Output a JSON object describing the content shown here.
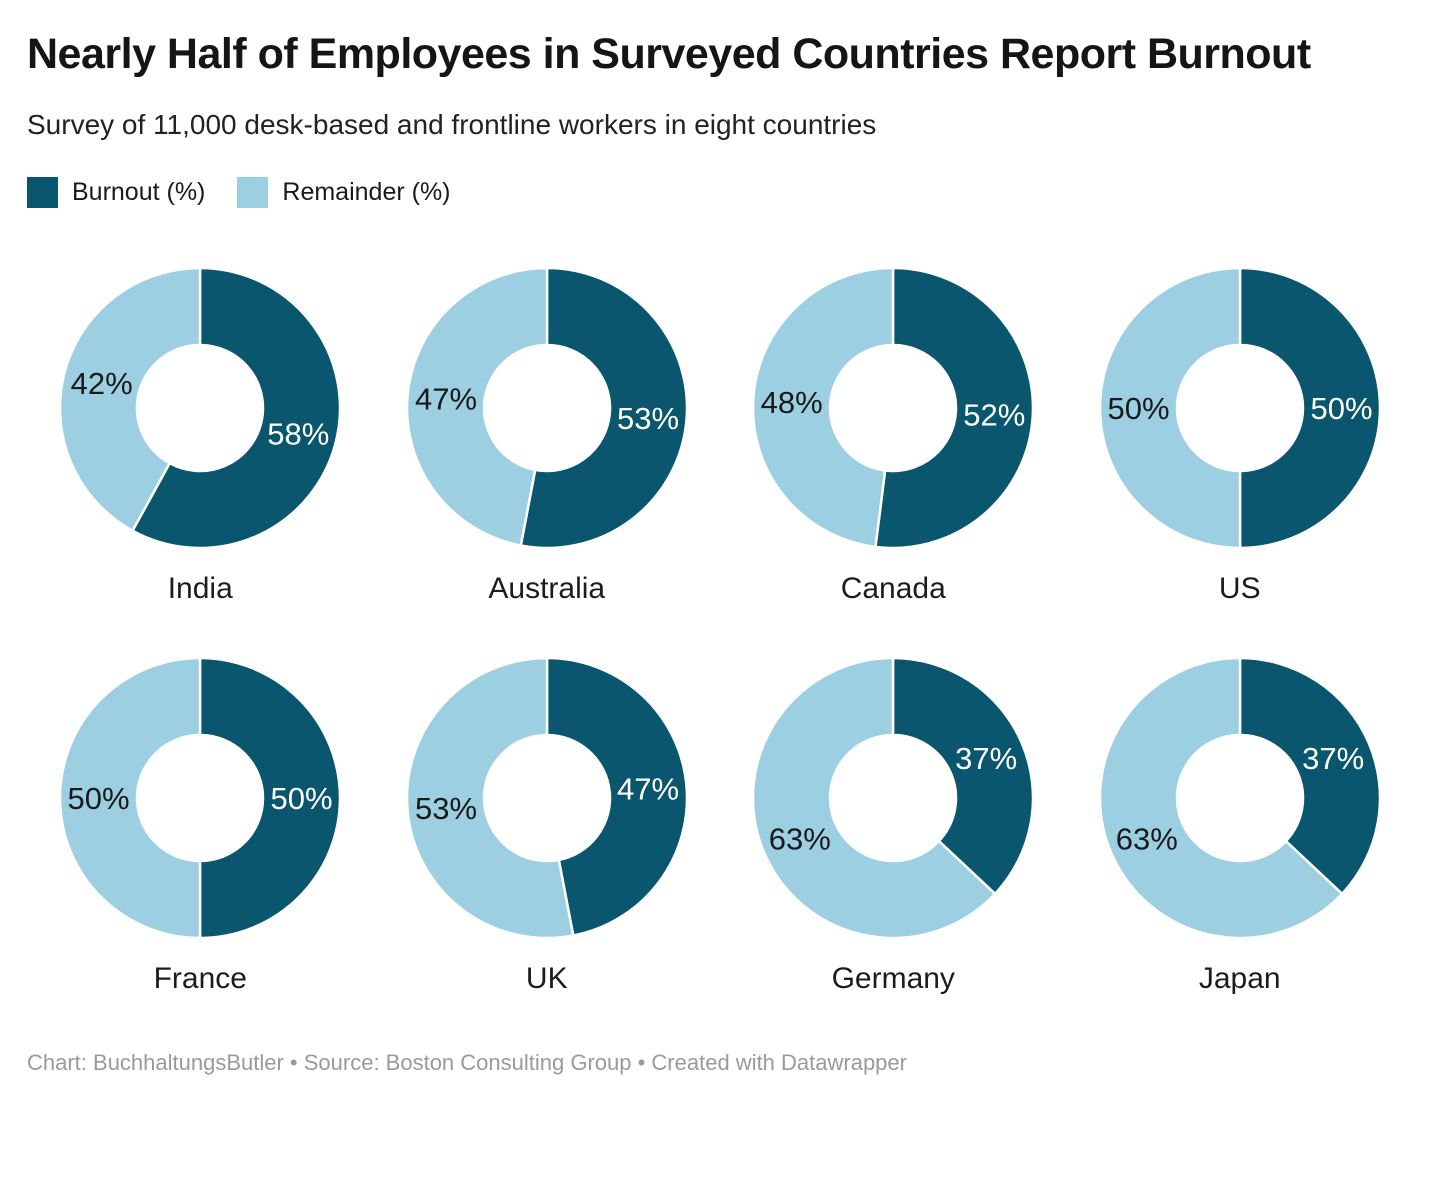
{
  "header": {
    "title": "Nearly Half of Employees in Surveyed Countries Report Burnout",
    "subtitle": "Survey of 11,000 desk-based and frontline workers in eight countries"
  },
  "legend": {
    "items": [
      {
        "label": "Burnout (%)",
        "color": "#0a566f"
      },
      {
        "label": "Remainder (%)",
        "color": "#9ccfe1"
      }
    ]
  },
  "chart_data": {
    "type": "pie",
    "variant": "donut-small-multiples",
    "legend_position": "top-left",
    "value_suffix": "%",
    "series_labels": [
      "Burnout (%)",
      "Remainder (%)"
    ],
    "colors": {
      "burnout": "#0a566f",
      "remainder": "#9ccfe1"
    },
    "label_colors": {
      "burnout": "#ffffff",
      "remainder": "#1a1a1a"
    },
    "start_angle": "12-o-clock-clockwise",
    "countries": [
      {
        "name": "India",
        "burnout": 58,
        "remainder": 42
      },
      {
        "name": "Australia",
        "burnout": 53,
        "remainder": 47
      },
      {
        "name": "Canada",
        "burnout": 52,
        "remainder": 48
      },
      {
        "name": "US",
        "burnout": 50,
        "remainder": 50
      },
      {
        "name": "France",
        "burnout": 50,
        "remainder": 50
      },
      {
        "name": "UK",
        "burnout": 47,
        "remainder": 53
      },
      {
        "name": "Germany",
        "burnout": 37,
        "remainder": 63
      },
      {
        "name": "Japan",
        "burnout": 37,
        "remainder": 63
      }
    ]
  },
  "footer": {
    "text": "Chart: BuchhaltungsButler • Source: Boston Consulting Group • Created with Datawrapper"
  }
}
